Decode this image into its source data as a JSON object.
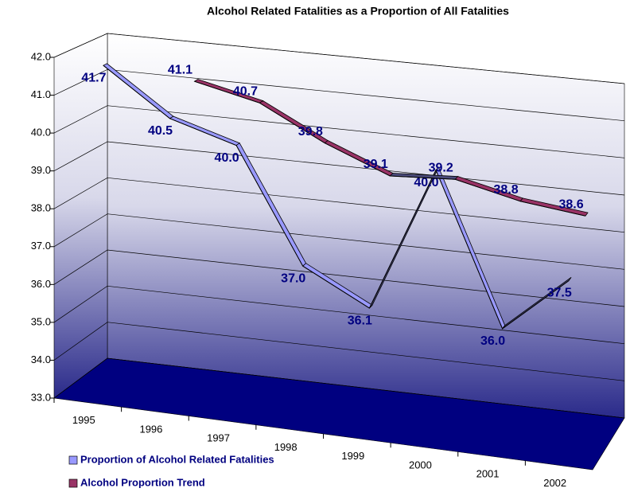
{
  "chart_data": {
    "type": "line3d",
    "title": "Alcohol Related Fatalities as a Proportion of All Fatalities",
    "categories": [
      "1995",
      "1996",
      "1997",
      "1998",
      "1999",
      "2000",
      "2001",
      "2002"
    ],
    "series": [
      {
        "name": "Proportion of Alcohol Related Fatalities",
        "color": "#9999ff",
        "values": [
          41.7,
          40.5,
          40.0,
          37.0,
          36.1,
          40.0,
          36.0,
          37.5
        ],
        "value_labels": [
          "41.7",
          "40.5",
          "40.0",
          "37.0",
          "36.1",
          "40.0",
          "36.0",
          "37.5"
        ]
      },
      {
        "name": "Alcohol Proportion Trend",
        "color": "#993366",
        "values": [
          null,
          41.1,
          40.7,
          39.8,
          39.1,
          39.2,
          38.8,
          38.6
        ],
        "value_labels": [
          null,
          "41.1",
          "40.7",
          "39.8",
          "39.1",
          "39.2",
          "38.8",
          "38.6"
        ]
      }
    ],
    "ylim": [
      33,
      42
    ],
    "yticks": [
      {
        "value": 33,
        "label": "33.0"
      },
      {
        "value": 34,
        "label": "34.0"
      },
      {
        "value": 35,
        "label": "35.0"
      },
      {
        "value": 36,
        "label": "36.0"
      },
      {
        "value": 37,
        "label": "37.0"
      },
      {
        "value": 38,
        "label": "38.0"
      },
      {
        "value": 39,
        "label": "39.0"
      },
      {
        "value": 40,
        "label": "40.0"
      },
      {
        "value": 41,
        "label": "41.0"
      },
      {
        "value": 42,
        "label": "42.0"
      }
    ],
    "grid": true,
    "legend": "bottom-left"
  }
}
